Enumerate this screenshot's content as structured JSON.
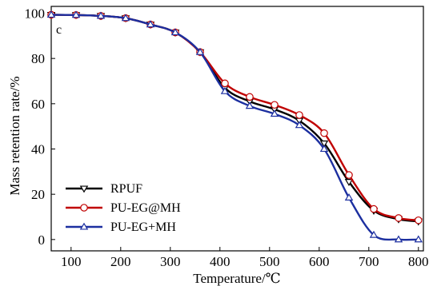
{
  "chart_data": {
    "type": "line",
    "panel_label": "c",
    "xlabel": "Temperature/℃",
    "ylabel": "Mass retention rate/%",
    "xlim": [
      60,
      810
    ],
    "ylim": [
      -5,
      103
    ],
    "x_ticks": [
      100,
      200,
      300,
      400,
      500,
      600,
      700,
      800
    ],
    "y_ticks": [
      0,
      20,
      40,
      60,
      80,
      100
    ],
    "grid": false,
    "legend_position": "bottom-left",
    "x": [
      60,
      110,
      160,
      210,
      260,
      310,
      360,
      410,
      460,
      510,
      560,
      610,
      660,
      710,
      760,
      800
    ],
    "series": [
      {
        "name": "RPUF",
        "color": "#000000",
        "marker": "triangle-down",
        "values": [
          99.3,
          99.2,
          98.8,
          97.8,
          95.0,
          91.5,
          82.8,
          67.0,
          61.0,
          57.5,
          52.5,
          42.5,
          25.5,
          12.8,
          9.0,
          8.0
        ]
      },
      {
        "name": "PU-EG@MH",
        "color": "#c00000",
        "marker": "circle",
        "values": [
          99.3,
          99.2,
          98.8,
          97.8,
          95.0,
          91.5,
          82.8,
          69.0,
          63.0,
          59.5,
          55.0,
          47.0,
          28.5,
          13.5,
          9.5,
          8.5
        ]
      },
      {
        "name": "PU-EG+MH",
        "color": "#1c2fa0",
        "marker": "triangle-up",
        "values": [
          99.3,
          99.2,
          98.8,
          97.8,
          95.0,
          91.5,
          82.8,
          65.5,
          59.0,
          55.5,
          50.5,
          40.0,
          18.5,
          2.0,
          0.0,
          0.0
        ]
      }
    ]
  }
}
